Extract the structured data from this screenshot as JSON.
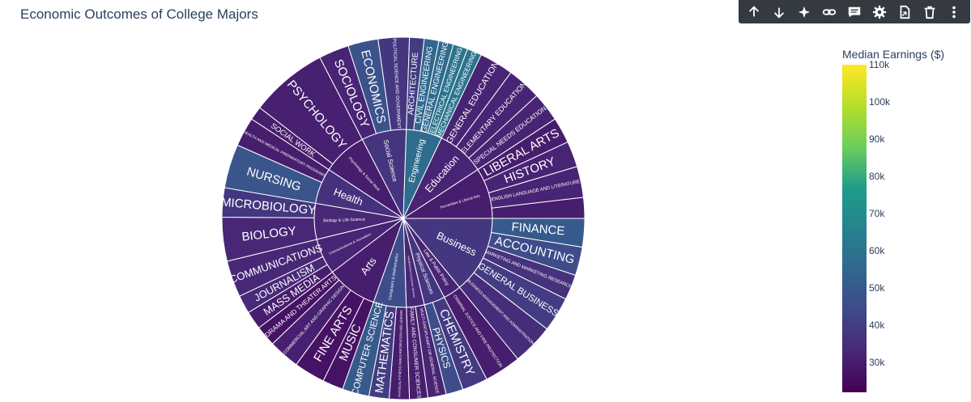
{
  "toolbar": {
    "icons": [
      "arrow-up-icon",
      "arrow-down-icon",
      "sparkle-icon",
      "link-icon",
      "comment-icon",
      "gear-icon",
      "export-icon",
      "trash-icon",
      "more-icon"
    ]
  },
  "colors": {
    "scale": [
      "#440154",
      "#482777",
      "#3f4a8a",
      "#31678e",
      "#26838f",
      "#1f9d8a",
      "#6cce5a",
      "#b6de2b",
      "#fee825"
    ],
    "separator": "#ffffff"
  },
  "chart_data": {
    "type": "sunburst",
    "title": "Economic Outcomes of College Majors",
    "colorbar": {
      "title": "Median Earnings ($)",
      "range": [
        22000,
        110000
      ],
      "ticks": [
        "110k",
        "100k",
        "90k",
        "80k",
        "70k",
        "60k",
        "50k",
        "40k",
        "30k"
      ],
      "tick_values": [
        110000,
        100000,
        90000,
        80000,
        70000,
        60000,
        50000,
        40000,
        30000
      ]
    },
    "categories": [
      {
        "name": "Business",
        "share": 0.13,
        "earnings": 38000,
        "majors": [
          {
            "name": "FINANCE",
            "share": 0.18,
            "earnings": 50000
          },
          {
            "name": "ACCOUNTING",
            "share": 0.18,
            "earnings": 45000
          },
          {
            "name": "MARKETING AND MARKETING RESEARCH",
            "share": 0.16,
            "earnings": 36000
          },
          {
            "name": "GENERAL BUSINESS",
            "share": 0.22,
            "earnings": 40000
          },
          {
            "name": "BUSINESS MANAGEMENT AND ADMINISTRATION",
            "share": 0.26,
            "earnings": 35000
          }
        ]
      },
      {
        "name": "Law & Public Policy",
        "share": 0.03,
        "earnings": 32000,
        "majors": [
          {
            "name": "CRIMINAL JUSTICE AND FIRE PROTECTION",
            "share": 1.0,
            "earnings": 30000
          }
        ]
      },
      {
        "name": "Physical Sciences",
        "share": 0.035,
        "earnings": 38000,
        "majors": [
          {
            "name": "CHEMISTRY",
            "share": 0.6,
            "earnings": 39000
          },
          {
            "name": "PHYSICS",
            "share": 0.4,
            "earnings": 45000
          }
        ]
      },
      {
        "name": "Industrial Arts & Consumer Services",
        "share": 0.03,
        "earnings": 33000,
        "majors": [
          {
            "name": "MULTI-DISCIPLINARY OR GENERAL SCIENCE",
            "share": 0.5,
            "earnings": 32000
          },
          {
            "name": "FAMILY AND CONSUMER SCIENCES",
            "share": 0.5,
            "earnings": 30000
          }
        ]
      },
      {
        "name": "Computers & Mathematics",
        "share": 0.055,
        "earnings": 45000,
        "majors": [
          {
            "name": "PHYSICAL FITNESS PARKS RECREATION AND LEISURE",
            "share": 0.3,
            "earnings": 30000
          },
          {
            "name": "MATHEMATICS",
            "share": 0.3,
            "earnings": 40000
          },
          {
            "name": "COMPUTER SCIENCE",
            "share": 0.4,
            "earnings": 50000
          }
        ]
      },
      {
        "name": "Arts",
        "share": 0.085,
        "earnings": 30000,
        "majors": [
          {
            "name": "MUSIC",
            "share": 0.2,
            "earnings": 27000
          },
          {
            "name": "FINE ARTS",
            "share": 0.3,
            "earnings": 27000
          },
          {
            "name": "COMMERCIAL ART AND GRAPHIC DESIGN",
            "share": 0.3,
            "earnings": 31000
          },
          {
            "name": "DRAMA AND THEATER ARTS",
            "share": 0.2,
            "earnings": 27000
          }
        ]
      },
      {
        "name": "Communications & Journalism",
        "share": 0.06,
        "earnings": 32000,
        "majors": [
          {
            "name": "MASS MEDIA",
            "share": 0.25,
            "earnings": 30000
          },
          {
            "name": "JOURNALISM",
            "share": 0.25,
            "earnings": 34000
          },
          {
            "name": "COMMUNICATIONS",
            "share": 0.5,
            "earnings": 33000
          }
        ]
      },
      {
        "name": "Biology & Life Science",
        "share": 0.06,
        "earnings": 33000,
        "majors": [
          {
            "name": "BIOLOGY",
            "share": 0.6,
            "earnings": 33000
          },
          {
            "name": "MICROBIOLOGY",
            "share": 0.4,
            "earnings": 38000
          }
        ]
      },
      {
        "name": "Health",
        "share": 0.06,
        "earnings": 36000,
        "majors": [
          {
            "name": "NURSING",
            "share": 0.6,
            "earnings": 48000
          },
          {
            "name": "HEALTH AND MEDICAL PREPARATORY PROGRAMS",
            "share": 0.4,
            "earnings": 30000
          }
        ]
      },
      {
        "name": "Psychology & Social Work",
        "share": 0.075,
        "earnings": 30000,
        "majors": [
          {
            "name": "SOCIAL WORK",
            "share": 0.15,
            "earnings": 30000
          },
          {
            "name": "PSYCHOLOGY",
            "share": 0.85,
            "earnings": 31000
          }
        ]
      },
      {
        "name": "Social Science",
        "share": 0.075,
        "earnings": 37000,
        "majors": [
          {
            "name": "SOCIOLOGY",
            "share": 0.33,
            "earnings": 32000
          },
          {
            "name": "ECONOMICS",
            "share": 0.33,
            "earnings": 47000
          },
          {
            "name": "POLITICAL SCIENCE AND GOVERNMENT",
            "share": 0.34,
            "earnings": 38000
          }
        ]
      },
      {
        "name": "Engineering",
        "share": 0.06,
        "earnings": 57000,
        "majors": [
          {
            "name": "ARCHITECTURE",
            "share": 0.2,
            "earnings": 40000
          },
          {
            "name": "CIVIL ENGINEERING",
            "share": 0.2,
            "earnings": 55000
          },
          {
            "name": "GENERAL ENGINEERING",
            "share": 0.2,
            "earnings": 56000
          },
          {
            "name": "ELECTRICAL ENGINEERING",
            "share": 0.2,
            "earnings": 60000
          },
          {
            "name": "MECHANICAL ENGINEERING",
            "share": 0.2,
            "earnings": 60000
          }
        ]
      },
      {
        "name": "Education",
        "share": 0.08,
        "earnings": 32000,
        "majors": [
          {
            "name": "GENERAL EDUCATION",
            "share": 0.35,
            "earnings": 32000
          },
          {
            "name": "ELEMENTARY EDUCATION",
            "share": 0.35,
            "earnings": 32000
          },
          {
            "name": "SPECIAL NEEDS EDUCATION",
            "share": 0.3,
            "earnings": 32000
          }
        ]
      },
      {
        "name": "Humanities & Liberal Arts",
        "share": 0.085,
        "earnings": 30000,
        "majors": [
          {
            "name": "LIBERAL ARTS",
            "share": 0.25,
            "earnings": 30000
          },
          {
            "name": "HISTORY",
            "share": 0.25,
            "earnings": 32000
          },
          {
            "name": "ENGLISH LANGUAGE AND LITERATURE",
            "share": 0.3,
            "earnings": 32000
          },
          {
            "name": "FRENCH GERMAN LATIN AND OTHER COMMON FOREIGN LANGUAGE STUDIES",
            "share": 0.2,
            "earnings": 30000
          }
        ]
      }
    ]
  }
}
